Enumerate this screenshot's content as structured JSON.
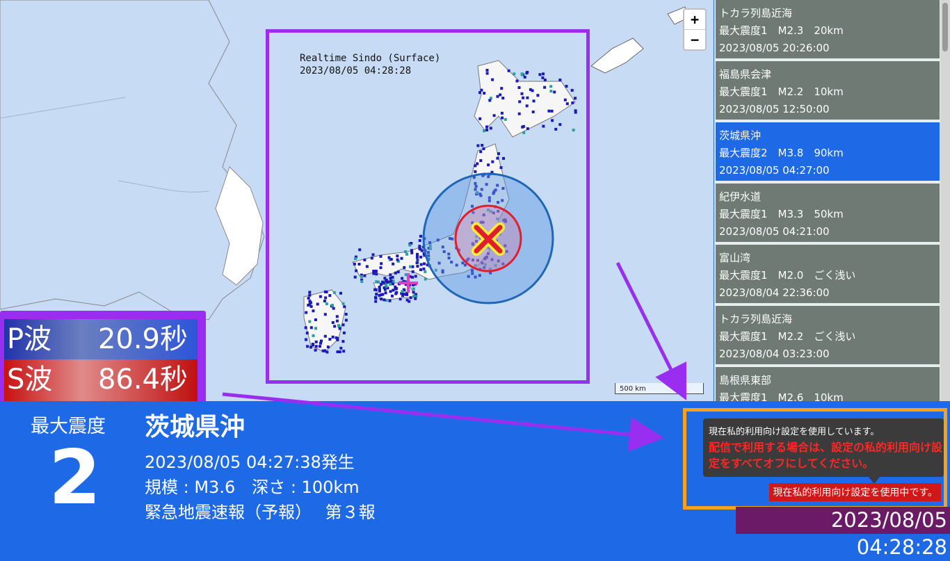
{
  "map": {
    "zoom_in": "+",
    "zoom_out": "−",
    "scale_label": "500 km",
    "inset_title": "Realtime Sindo (Surface)",
    "inset_time": "2023/08/05 04:28:28"
  },
  "wave": {
    "p_label": "P波",
    "p_value": "20.9秒",
    "s_label": "S波",
    "s_value": "86.4秒"
  },
  "quake_list": [
    {
      "region": "トカラ列島近海",
      "detail": "最大震度1　M2.3　20km",
      "time": "2023/08/05 20:26:00",
      "selected": false
    },
    {
      "region": "福島県会津",
      "detail": "最大震度1　M2.2　10km",
      "time": "2023/08/05 12:50:00",
      "selected": false
    },
    {
      "region": "茨城県沖",
      "detail": "最大震度2　M3.8　90km",
      "time": "2023/08/05 04:27:00",
      "selected": true
    },
    {
      "region": "紀伊水道",
      "detail": "最大震度1　M3.3　50km",
      "time": "2023/08/05 04:21:00",
      "selected": false
    },
    {
      "region": "富山湾",
      "detail": "最大震度1　M2.0　ごく浅い",
      "time": "2023/08/04 22:36:00",
      "selected": false
    },
    {
      "region": "トカラ列島近海",
      "detail": "最大震度1　M2.2　ごく浅い",
      "time": "2023/08/04 03:23:00",
      "selected": false
    },
    {
      "region": "島根県東部",
      "detail": "最大震度1　M2.6　10km",
      "time": "",
      "selected": false
    }
  ],
  "alert": {
    "max_label": "最大震度",
    "max_value": "2",
    "location": "茨城県沖",
    "occurred": "2023/08/05 04:27:38発生",
    "magnitude_depth": "規模 : M3.6　深さ : 100km",
    "report": "緊急地震速報（予報）　 第３報"
  },
  "notice": {
    "line1": "現在私的利用向け設定を使用しています。",
    "warning": "配信で利用する場合は、設定の私的利用向け設定をすべてオフにしてください。",
    "badge": "現在私的利用向け設定を使用中です。"
  },
  "clock": "2023/08/05 04:28:28",
  "colors": {
    "accent": "#1e6ae6",
    "highlight": "#9a2ef0",
    "notice_border": "#f7a21b",
    "p_wave": "#2e55d8",
    "s_wave": "#c81010"
  }
}
